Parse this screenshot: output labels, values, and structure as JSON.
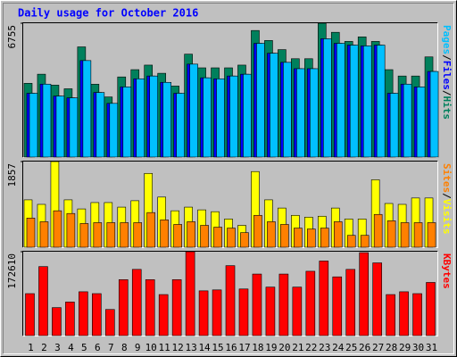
{
  "chart_data": [
    {
      "type": "bar",
      "title": "Daily usage for October 2016",
      "legend_separator": "/",
      "series": [
        {
          "name": "Pages",
          "color": "#00c0ff",
          "values": [
            3220,
            3680,
            3080,
            2990,
            4870,
            3260,
            2710,
            3540,
            3950,
            4090,
            3770,
            3220,
            4690,
            4000,
            3950,
            4090,
            4180,
            5740,
            5240,
            4780,
            4460,
            4460,
            5970,
            5740,
            5650,
            5610,
            5650,
            3220,
            3680,
            3540,
            4320
          ]
        },
        {
          "name": "Files",
          "color": "#0000ff",
          "values": [
            3220,
            3680,
            3080,
            2990,
            4870,
            3260,
            2710,
            3540,
            3950,
            4090,
            3770,
            3220,
            4690,
            4000,
            3950,
            4090,
            4180,
            5740,
            5240,
            4780,
            4460,
            4460,
            5970,
            5740,
            5650,
            5610,
            5650,
            3220,
            3680,
            3540,
            4320
          ]
        },
        {
          "name": "Hits",
          "color": "#00805c",
          "values": [
            3722,
            4182,
            3630,
            3446,
            5560,
            3676,
            3033,
            4044,
            4411,
            4641,
            4228,
            3584,
            5193,
            4503,
            4503,
            4503,
            4641,
            6387,
            5882,
            5422,
            4963,
            4963,
            6755,
            6296,
            5836,
            6066,
            5836,
            4411,
            4090,
            4090,
            5055
          ]
        }
      ],
      "ylim": [
        0,
        6755
      ],
      "yticks": [
        6755
      ]
    },
    {
      "type": "bar",
      "legend_separator": "/",
      "series": [
        {
          "name": "Sites",
          "color": "#ff8000",
          "values": [
            632,
            553,
            790,
            731,
            514,
            533,
            533,
            533,
            533,
            751,
            593,
            494,
            553,
            474,
            435,
            415,
            316,
            691,
            553,
            494,
            415,
            395,
            415,
            553,
            257,
            257,
            711,
            573,
            533,
            533,
            533
          ]
        },
        {
          "name": "Visits",
          "color": "#ffff00",
          "values": [
            1027,
            929,
            1857,
            1027,
            830,
            968,
            968,
            869,
            1008,
            1600,
            1087,
            790,
            869,
            810,
            770,
            612,
            474,
            1640,
            1027,
            849,
            691,
            652,
            672,
            849,
            612,
            612,
            1462,
            948,
            929,
            1067,
            1067
          ]
        }
      ],
      "ylim": [
        0,
        1857
      ],
      "yticks": [
        1857
      ]
    },
    {
      "type": "bar",
      "series": [
        {
          "name": "KBytes",
          "color": "#ff0000",
          "values": [
            86310,
            141930,
            57540,
            69050,
            90150,
            86310,
            53700,
            115080,
            136180,
            115080,
            84390,
            115080,
            172610,
            92060,
            93980,
            143850,
            95900,
            126590,
            99740,
            126590,
            99740,
            132340,
            153440,
            120830,
            136180,
            170700,
            149600,
            84390,
            90150,
            86310,
            109330
          ]
        }
      ],
      "ylim": [
        0,
        172610
      ],
      "yticks": [
        172610
      ],
      "categories": [
        "1",
        "2",
        "3",
        "4",
        "5",
        "6",
        "7",
        "8",
        "9",
        "10",
        "11",
        "12",
        "13",
        "14",
        "15",
        "16",
        "17",
        "18",
        "19",
        "20",
        "21",
        "22",
        "23",
        "24",
        "25",
        "26",
        "27",
        "28",
        "29",
        "30",
        "31"
      ],
      "label_colors": [
        "#00805c",
        "#00805c",
        "#0000ff",
        "#0000ff",
        "#0000ff",
        "#0000ff",
        "#0000ff",
        "#00805c",
        "#00805c",
        "#0000ff",
        "#0000ff",
        "#0000ff",
        "#0000ff",
        "#0000ff",
        "#00805c",
        "#00805c",
        "#0000ff",
        "#0000ff",
        "#0000ff",
        "#0000ff",
        "#0000ff",
        "#00805c",
        "#00805c",
        "#0000ff",
        "#0000ff",
        "#0000ff",
        "#0000ff",
        "#0000ff",
        "#00805c",
        "#00805c",
        "#0000ff"
      ]
    }
  ]
}
